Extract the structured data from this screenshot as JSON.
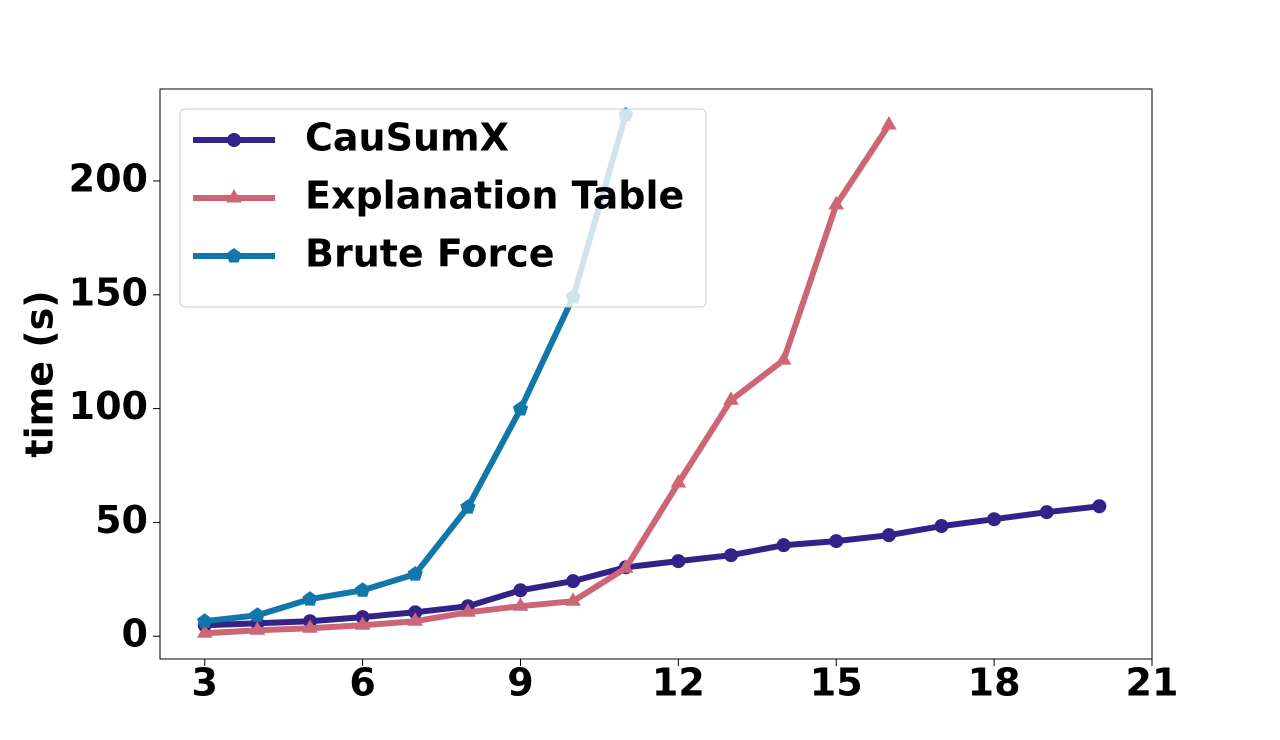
{
  "chart_data": {
    "type": "line",
    "y_label": "time (s)",
    "xlim": [
      2.15,
      21
    ],
    "xticks": [
      3,
      6,
      9,
      12,
      15,
      18,
      21
    ],
    "ylim": [
      -10,
      240.4
    ],
    "yticks": [
      0,
      50,
      100,
      150,
      200
    ],
    "legend": "upper left",
    "series": [
      {
        "name": "CauSumX",
        "color": "#332288",
        "marker": "circle",
        "x": [
          3,
          4,
          5,
          6,
          7,
          8,
          9,
          10,
          11,
          12,
          13,
          14,
          15,
          16,
          17,
          18,
          19,
          20
        ],
        "values": [
          4.8,
          5.7,
          6.6,
          8.4,
          10.5,
          13.2,
          20.2,
          24.2,
          30.3,
          33,
          35.6,
          40,
          41.8,
          44.4,
          48.4,
          51.4,
          54.5,
          57.1
        ]
      },
      {
        "name": "Explanation Table",
        "color": "#cc6677",
        "marker": "triangle",
        "x": [
          3,
          4,
          5,
          6,
          7,
          8,
          9,
          10,
          11,
          12,
          13,
          14,
          15,
          16
        ],
        "values": [
          1.3,
          2.6,
          3.5,
          4.8,
          6.6,
          10.5,
          13.2,
          15.4,
          29.9,
          67.3,
          103.7,
          121.3,
          189.5,
          224.6
        ]
      },
      {
        "name": "Brute Force",
        "color": "#1177aa",
        "marker": "pentagon",
        "x": [
          3,
          4,
          5,
          6,
          7,
          8,
          9,
          10,
          11
        ],
        "values": [
          6.6,
          9.2,
          16.3,
          20.2,
          27.3,
          56.7,
          99.8,
          149,
          229
        ]
      }
    ]
  }
}
